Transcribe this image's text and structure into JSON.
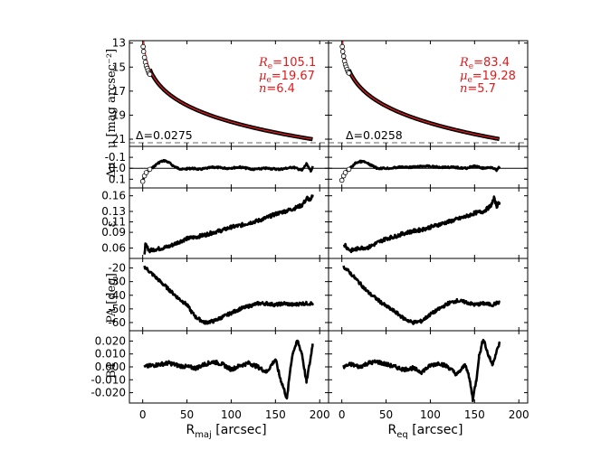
{
  "chart_data": {
    "type": "line",
    "description_free": true,
    "columns": [
      {
        "id": "left",
        "xlabel_main": "R",
        "xlabel_sub": "maj",
        "xlabel_tail": " [arcsec]",
        "xlim": [
          -15,
          210
        ],
        "xticks": [
          0,
          50,
          100,
          150,
          200
        ],
        "xmax_data": 192
      },
      {
        "id": "right",
        "xlabel_main": "R",
        "xlabel_sub": "eq",
        "xlabel_tail": " [arcsec]",
        "xlim": [
          -15,
          210
        ],
        "xticks": [
          0,
          50,
          100,
          150,
          200
        ],
        "xmax_data": 178
      }
    ],
    "rows": [
      {
        "id": "mu",
        "ylabel": "μ [mag arcsec⁻²]",
        "ylim": [
          21.6,
          12.8
        ],
        "yticks": [
          13,
          15,
          17,
          19,
          21
        ],
        "yticklabels": [
          "13",
          "15",
          "17",
          "19",
          "21"
        ],
        "hline": 21.3
      },
      {
        "id": "dmu",
        "ylabel": "Δμ",
        "ylim": [
          0.18,
          -0.2
        ],
        "yticks": [
          -0.1,
          0.0,
          0.1
        ],
        "yticklabels": [
          "-0.1",
          "0.0",
          "0.1"
        ],
        "hline": 0.0
      },
      {
        "id": "eps",
        "ylabel": "ε",
        "ylim": [
          0.04,
          0.175
        ],
        "yticks": [
          0.06,
          0.09,
          0.11,
          0.13,
          0.16
        ],
        "yticklabels": [
          "0.06",
          "0.09",
          "0.11",
          "0.13",
          "0.16"
        ]
      },
      {
        "id": "pa",
        "ylabel": "PA [deg]",
        "ylim": [
          -66,
          -13
        ],
        "yticks": [
          -60,
          -50,
          -40,
          -30,
          -20
        ],
        "yticklabels": [
          "-60",
          "-50",
          "-40",
          "-30",
          "-20"
        ]
      },
      {
        "id": "b4",
        "ylabel": "B4",
        "ylim": [
          -0.028,
          0.028
        ],
        "yticks": [
          -0.02,
          -0.01,
          0.0,
          0.01,
          0.02
        ],
        "yticklabels": [
          "-0.020",
          "-0.010",
          "0.000",
          "0.010",
          "0.020"
        ]
      }
    ],
    "annotations": {
      "left": {
        "re_label": "R",
        "re_sub": "e",
        "re_value": "=105.1",
        "mue_label": "μ",
        "mue_sub": "e",
        "mue_value": "=19.67",
        "n_label": "n",
        "n_value": "=6.4",
        "delta": "Δ=0.0275"
      },
      "right": {
        "re_label": "R",
        "re_sub": "e",
        "re_value": "=83.4",
        "mue_label": "μ",
        "mue_sub": "e",
        "mue_value": "=19.28",
        "n_label": "n",
        "n_value": "=5.7",
        "delta": "Δ=0.0258"
      }
    },
    "series": {
      "left": {
        "mu_fit": {
          "re": 105.1,
          "mue": 19.67,
          "n": 6.4,
          "color": "#e31a1c"
        },
        "mu_points_start": [
          [
            0.5,
            13.3
          ],
          [
            1,
            13.7
          ],
          [
            2,
            14.2
          ],
          [
            3,
            14.6
          ],
          [
            4,
            14.9
          ],
          [
            5,
            15.1
          ],
          [
            6,
            15.3
          ],
          [
            7,
            15.5
          ],
          [
            8,
            15.6
          ]
        ],
        "dmu": [
          [
            0,
            0.12
          ],
          [
            2,
            0.07
          ],
          [
            4,
            0.04
          ],
          [
            8,
            0.01
          ],
          [
            12,
            -0.01
          ],
          [
            16,
            -0.04
          ],
          [
            20,
            -0.06
          ],
          [
            25,
            -0.07
          ],
          [
            30,
            -0.05
          ],
          [
            35,
            -0.02
          ],
          [
            40,
            0.0
          ],
          [
            45,
            0.01
          ],
          [
            55,
            0.0
          ],
          [
            65,
            0.01
          ],
          [
            80,
            -0.01
          ],
          [
            95,
            0.0
          ],
          [
            110,
            -0.01
          ],
          [
            125,
            0.01
          ],
          [
            140,
            0.0
          ],
          [
            155,
            0.01
          ],
          [
            170,
            -0.01
          ],
          [
            180,
            0.02
          ],
          [
            185,
            -0.04
          ],
          [
            190,
            0.03
          ],
          [
            192,
            -0.02
          ]
        ],
        "eps": [
          [
            2,
            0.05
          ],
          [
            3,
            0.066
          ],
          [
            5,
            0.061
          ],
          [
            8,
            0.055
          ],
          [
            12,
            0.057
          ],
          [
            20,
            0.059
          ],
          [
            30,
            0.063
          ],
          [
            40,
            0.071
          ],
          [
            50,
            0.078
          ],
          [
            60,
            0.081
          ],
          [
            70,
            0.085
          ],
          [
            80,
            0.09
          ],
          [
            90,
            0.094
          ],
          [
            100,
            0.1
          ],
          [
            110,
            0.103
          ],
          [
            120,
            0.108
          ],
          [
            130,
            0.112
          ],
          [
            140,
            0.118
          ],
          [
            150,
            0.125
          ],
          [
            160,
            0.13
          ],
          [
            170,
            0.135
          ],
          [
            180,
            0.142
          ],
          [
            186,
            0.156
          ],
          [
            190,
            0.15
          ],
          [
            192,
            0.162
          ]
        ],
        "pa": [
          [
            2,
            -19
          ],
          [
            10,
            -24
          ],
          [
            20,
            -30
          ],
          [
            30,
            -36
          ],
          [
            40,
            -42
          ],
          [
            50,
            -47
          ],
          [
            55,
            -52
          ],
          [
            60,
            -56
          ],
          [
            65,
            -58
          ],
          [
            70,
            -60
          ],
          [
            80,
            -59
          ],
          [
            90,
            -56
          ],
          [
            100,
            -53
          ],
          [
            110,
            -50
          ],
          [
            120,
            -48
          ],
          [
            130,
            -46
          ],
          [
            140,
            -46
          ],
          [
            150,
            -47
          ],
          [
            160,
            -46
          ],
          [
            170,
            -47
          ],
          [
            180,
            -46
          ],
          [
            192,
            -46
          ]
        ],
        "b4": [
          [
            2,
            0.0
          ],
          [
            10,
            0.001
          ],
          [
            20,
            0.002
          ],
          [
            30,
            0.003
          ],
          [
            40,
            0.001
          ],
          [
            50,
            0.0
          ],
          [
            60,
            -0.001
          ],
          [
            70,
            0.002
          ],
          [
            80,
            0.004
          ],
          [
            90,
            0.002
          ],
          [
            100,
            -0.002
          ],
          [
            110,
            0.001
          ],
          [
            120,
            0.003
          ],
          [
            130,
            0.0
          ],
          [
            140,
            -0.004
          ],
          [
            150,
            0.006
          ],
          [
            155,
            -0.008
          ],
          [
            160,
            -0.018
          ],
          [
            163,
            -0.025
          ],
          [
            167,
            0.0
          ],
          [
            170,
            0.012
          ],
          [
            175,
            0.02
          ],
          [
            180,
            0.01
          ],
          [
            185,
            -0.012
          ],
          [
            190,
            0.008
          ],
          [
            192,
            0.018
          ]
        ]
      },
      "right": {
        "mu_fit": {
          "re": 83.4,
          "mue": 19.28,
          "n": 5.7,
          "color": "#e31a1c"
        },
        "mu_points_start": [
          [
            0.5,
            13.3
          ],
          [
            1,
            13.7
          ],
          [
            2,
            14.1
          ],
          [
            3,
            14.5
          ],
          [
            4,
            14.8
          ],
          [
            5,
            15.0
          ],
          [
            6,
            15.2
          ],
          [
            7,
            15.4
          ],
          [
            8,
            15.5
          ]
        ],
        "dmu": [
          [
            0,
            0.11
          ],
          [
            2,
            0.07
          ],
          [
            4,
            0.04
          ],
          [
            8,
            0.01
          ],
          [
            12,
            -0.02
          ],
          [
            16,
            -0.05
          ],
          [
            20,
            -0.06
          ],
          [
            25,
            -0.06
          ],
          [
            30,
            -0.04
          ],
          [
            35,
            -0.02
          ],
          [
            40,
            0.0
          ],
          [
            45,
            0.0
          ],
          [
            55,
            0.0
          ],
          [
            65,
            -0.01
          ],
          [
            80,
            -0.01
          ],
          [
            95,
            -0.02
          ],
          [
            110,
            -0.01
          ],
          [
            125,
            -0.01
          ],
          [
            140,
            0.0
          ],
          [
            150,
            -0.02
          ],
          [
            160,
            0.0
          ],
          [
            170,
            -0.01
          ],
          [
            175,
            0.02
          ],
          [
            178,
            -0.01
          ]
        ],
        "eps": [
          [
            2,
            0.062
          ],
          [
            4,
            0.066
          ],
          [
            6,
            0.06
          ],
          [
            10,
            0.055
          ],
          [
            15,
            0.057
          ],
          [
            20,
            0.06
          ],
          [
            30,
            0.061
          ],
          [
            40,
            0.07
          ],
          [
            50,
            0.078
          ],
          [
            60,
            0.082
          ],
          [
            70,
            0.088
          ],
          [
            80,
            0.092
          ],
          [
            90,
            0.095
          ],
          [
            100,
            0.1
          ],
          [
            110,
            0.105
          ],
          [
            120,
            0.11
          ],
          [
            130,
            0.115
          ],
          [
            140,
            0.12
          ],
          [
            150,
            0.127
          ],
          [
            160,
            0.13
          ],
          [
            168,
            0.14
          ],
          [
            172,
            0.155
          ],
          [
            175,
            0.14
          ],
          [
            178,
            0.148
          ]
        ],
        "pa": [
          [
            2,
            -19
          ],
          [
            10,
            -24
          ],
          [
            20,
            -31
          ],
          [
            30,
            -38
          ],
          [
            40,
            -43
          ],
          [
            50,
            -48
          ],
          [
            60,
            -52
          ],
          [
            70,
            -57
          ],
          [
            80,
            -60
          ],
          [
            90,
            -59
          ],
          [
            100,
            -54
          ],
          [
            110,
            -50
          ],
          [
            120,
            -46
          ],
          [
            130,
            -44
          ],
          [
            140,
            -45
          ],
          [
            150,
            -47
          ],
          [
            160,
            -46
          ],
          [
            170,
            -47
          ],
          [
            178,
            -45
          ]
        ],
        "b4": [
          [
            2,
            0.0
          ],
          [
            10,
            0.002
          ],
          [
            20,
            0.0
          ],
          [
            30,
            0.003
          ],
          [
            40,
            0.004
          ],
          [
            50,
            0.002
          ],
          [
            60,
            0.0
          ],
          [
            70,
            -0.002
          ],
          [
            80,
            -0.001
          ],
          [
            90,
            -0.004
          ],
          [
            100,
            0.001
          ],
          [
            110,
            0.003
          ],
          [
            120,
            0.0
          ],
          [
            130,
            -0.006
          ],
          [
            140,
            0.002
          ],
          [
            145,
            -0.012
          ],
          [
            148,
            -0.025
          ],
          [
            152,
            -0.01
          ],
          [
            155,
            0.008
          ],
          [
            160,
            0.022
          ],
          [
            165,
            0.01
          ],
          [
            170,
            0.002
          ],
          [
            175,
            0.012
          ],
          [
            178,
            0.018
          ]
        ]
      }
    }
  }
}
